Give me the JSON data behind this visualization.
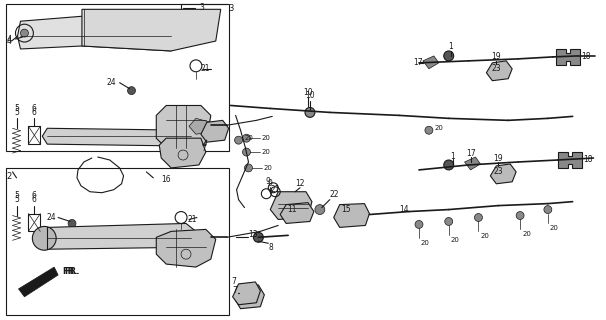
{
  "bg_color": "#ffffff",
  "line_color": "#1a1a1a",
  "fig_width": 6.06,
  "fig_height": 3.2,
  "dpi": 100
}
